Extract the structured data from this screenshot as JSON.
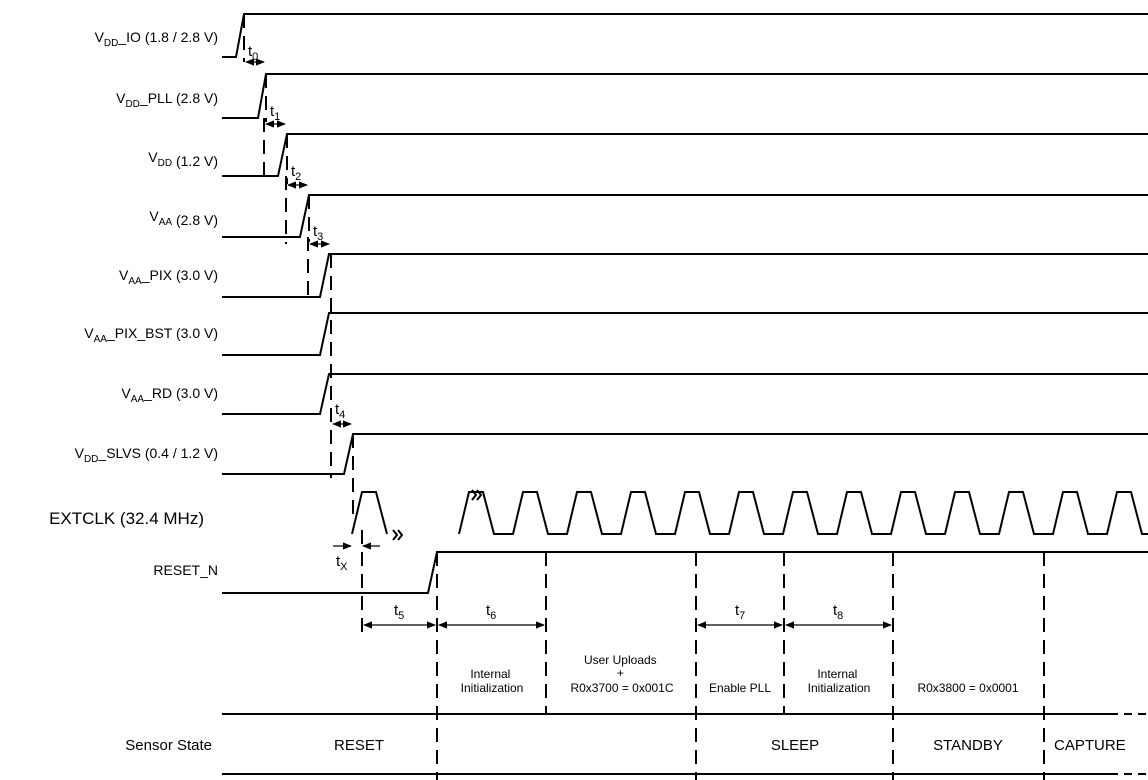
{
  "supplies": [
    {
      "base": "V",
      "sub": "DD",
      "suffix": "_IO",
      "rating": " (1.8 / 2.8 V)"
    },
    {
      "base": "V",
      "sub": "DD",
      "suffix": "_PLL",
      "rating": " (2.8 V)"
    },
    {
      "base": "V",
      "sub": "DD",
      "suffix": "",
      "rating": " (1.2 V)"
    },
    {
      "base": "V",
      "sub": "AA",
      "suffix": "",
      "rating": " (2.8 V)"
    },
    {
      "base": "V",
      "sub": "AA",
      "suffix": "_PIX",
      "rating": " (3.0 V)"
    },
    {
      "base": "V",
      "sub": "AA",
      "suffix": "_PIX_BST",
      "rating": " (3.0 V)"
    },
    {
      "base": "V",
      "sub": "AA",
      "suffix": "_RD",
      "rating": " (3.0 V)"
    },
    {
      "base": "V",
      "sub": "DD",
      "suffix": "_SLVS",
      "rating": " (0.4 / 1.2 V)"
    }
  ],
  "extclk_label": "EXTCLK (32.4 MHz)",
  "reset_label": "RESET_N",
  "sensor_state_label": "Sensor State",
  "timings": {
    "t0": {
      "base": "t",
      "sub": "0"
    },
    "t1": {
      "base": "t",
      "sub": "1"
    },
    "t2": {
      "base": "t",
      "sub": "2"
    },
    "t3": {
      "base": "t",
      "sub": "3"
    },
    "t4": {
      "base": "t",
      "sub": "4"
    },
    "tx": {
      "base": "t",
      "sub": "X"
    },
    "t5": {
      "base": "t",
      "sub": "5"
    },
    "t6": {
      "base": "t",
      "sub": "6"
    },
    "t7": {
      "base": "t",
      "sub": "7"
    },
    "t8": {
      "base": "t",
      "sub": "8"
    }
  },
  "phases": {
    "internal_init_1": [
      "Internal",
      "Initialization"
    ],
    "user_uploads": [
      "User Uploads",
      "+",
      "R0x3700 = 0x001C"
    ],
    "enable_pll": "Enable PLL",
    "internal_init_2": [
      "Internal",
      "Initialization"
    ],
    "standby_write": "R0x3800 = 0x0001"
  },
  "states": {
    "reset": "RESET",
    "sleep": "SLEEP",
    "standby": "STANDBY",
    "capture": "CAPTURE"
  }
}
